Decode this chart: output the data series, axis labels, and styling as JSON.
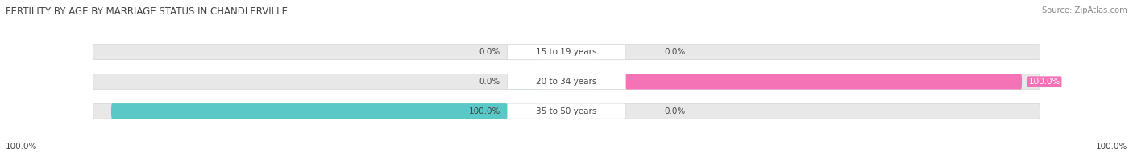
{
  "title": "FERTILITY BY AGE BY MARRIAGE STATUS IN CHANDLERVILLE",
  "source": "Source: ZipAtlas.com",
  "categories": [
    "15 to 19 years",
    "20 to 34 years",
    "35 to 50 years"
  ],
  "married_pct": [
    0.0,
    0.0,
    100.0
  ],
  "unmarried_pct": [
    0.0,
    100.0,
    0.0
  ],
  "married_color": "#5bc8c8",
  "unmarried_color": "#f472b6",
  "unmarried_light_color": "#f9a8d4",
  "bar_bg_color": "#e8e8e8",
  "title_color": "#444444",
  "source_color": "#888888",
  "label_color": "#444444",
  "figsize": [
    14.06,
    1.96
  ],
  "dpi": 100
}
